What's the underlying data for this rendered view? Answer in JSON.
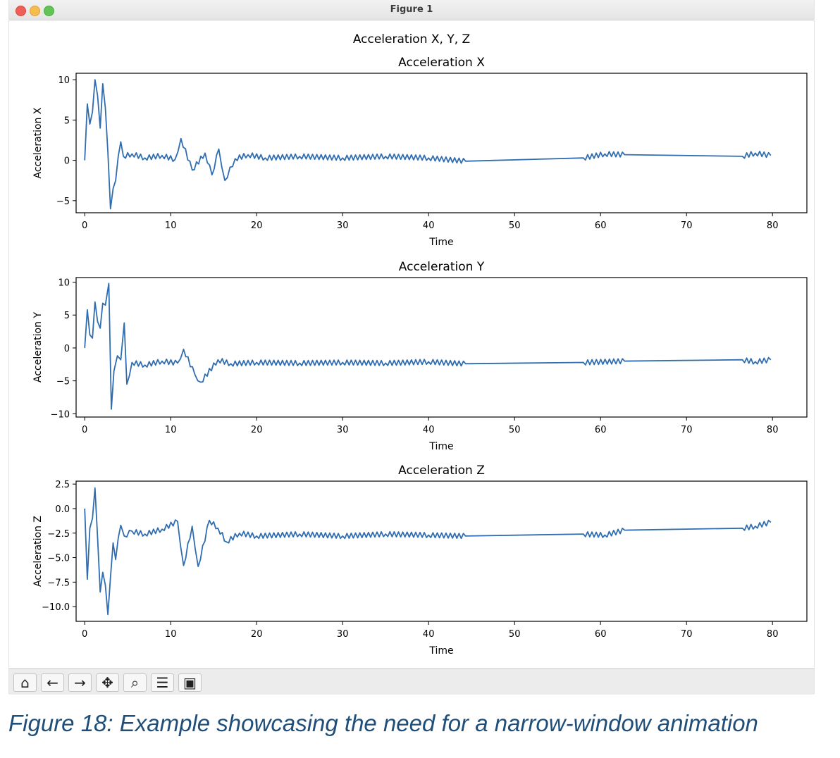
{
  "window": {
    "title": "Figure 1"
  },
  "figure": {
    "suptitle": "Acceleration X, Y, Z",
    "xlabel": "Time",
    "x_ticks": [
      0,
      10,
      20,
      30,
      40,
      50,
      60,
      70,
      80
    ],
    "line_color": "#2f6db0"
  },
  "chart_data": [
    {
      "type": "line",
      "title": "Acceleration X",
      "xlabel": "Time",
      "ylabel": "Acceleration X",
      "xlim": [
        -1,
        84
      ],
      "ylim": [
        -6.5,
        10.8
      ],
      "y_ticks": [
        10,
        5,
        0,
        -5
      ],
      "y_tick_labels": [
        "10",
        "5",
        "0",
        "−5"
      ],
      "series": [
        {
          "x": [
            0,
            0.3,
            0.6,
            0.9,
            1.2,
            1.5,
            1.8,
            2.1,
            2.4,
            2.7,
            3.0,
            3.3,
            3.6,
            3.9,
            4.2,
            4.5,
            5.5,
            7,
            9,
            10.5,
            11.2,
            12.5,
            14,
            14.8,
            15.6,
            16.3,
            17.5,
            19,
            21,
            25,
            30,
            35,
            40,
            44.3,
            58,
            60.5,
            62.8,
            76.5,
            78,
            79.8
          ],
          "y": [
            0,
            7.0,
            4.5,
            6.0,
            10.0,
            8.0,
            4.0,
            9.5,
            6.5,
            1.0,
            -6.0,
            -3.5,
            -2.5,
            0.5,
            2.3,
            0.5,
            0.8,
            0.3,
            0.6,
            0.1,
            2.7,
            -1.2,
            0.9,
            -1.8,
            1.4,
            -2.5,
            0.2,
            0.7,
            0.3,
            0.5,
            0.3,
            0.5,
            0.3,
            -0.1,
            0.3,
            0.8,
            0.7,
            0.5,
            0.9,
            0.6
          ]
        }
      ]
    },
    {
      "type": "line",
      "title": "Acceleration Y",
      "xlabel": "Time",
      "ylabel": "Acceleration Y",
      "xlim": [
        -1,
        84
      ],
      "ylim": [
        -10.5,
        10.7
      ],
      "y_ticks": [
        10,
        5,
        0,
        -5,
        -10
      ],
      "y_tick_labels": [
        "10",
        "5",
        "0",
        "−5",
        "−10"
      ],
      "series": [
        {
          "x": [
            0,
            0.3,
            0.6,
            0.9,
            1.2,
            1.5,
            1.8,
            2.1,
            2.4,
            2.8,
            3.1,
            3.4,
            3.8,
            4.2,
            4.6,
            4.9,
            5.5,
            7,
            9,
            10.8,
            11.5,
            12.8,
            13.5,
            15.5,
            17,
            20,
            25,
            30,
            35,
            40,
            44.3,
            58,
            62.8,
            76.5,
            78,
            79.8
          ],
          "y": [
            0,
            5.8,
            2.0,
            1.5,
            7.0,
            4.0,
            3.0,
            6.8,
            6.5,
            9.8,
            -9.3,
            -3.5,
            -1.2,
            -1.8,
            3.8,
            -5.5,
            -2.2,
            -2.6,
            -2.0,
            -2.3,
            -0.2,
            -4.0,
            -5.2,
            -1.8,
            -2.4,
            -2.2,
            -2.3,
            -2.2,
            -2.3,
            -2.1,
            -2.4,
            -2.2,
            -2.0,
            -1.8,
            -2.1,
            -1.8
          ]
        }
      ]
    },
    {
      "type": "line",
      "title": "Acceleration Z",
      "xlabel": "Time",
      "ylabel": "Acceleration Z",
      "xlim": [
        -1,
        84
      ],
      "ylim": [
        -11.5,
        2.8
      ],
      "y_ticks": [
        2.5,
        0.0,
        -2.5,
        -5.0,
        -7.5,
        -10.0
      ],
      "y_tick_labels": [
        "2.5",
        "0.0",
        "−2.5",
        "−5.0",
        "−7.5",
        "−10.0"
      ],
      "series": [
        {
          "x": [
            0,
            0.3,
            0.6,
            0.9,
            1.2,
            1.5,
            1.8,
            2.1,
            2.4,
            2.7,
            3.0,
            3.3,
            3.6,
            3.9,
            4.2,
            4.6,
            5.5,
            7,
            9,
            10.8,
            11.5,
            12.5,
            13.2,
            14.5,
            15.5,
            16.5,
            18,
            20,
            25,
            30,
            35,
            40,
            44.3,
            58,
            60.5,
            62.8,
            76.5,
            78,
            79.8
          ],
          "y": [
            0,
            -7.2,
            -2.0,
            -1.0,
            2.1,
            -3.0,
            -8.5,
            -6.5,
            -7.8,
            -10.8,
            -7.0,
            -3.5,
            -5.2,
            -3.0,
            -1.7,
            -2.8,
            -2.3,
            -2.6,
            -2.1,
            -1.3,
            -5.8,
            -1.8,
            -5.9,
            -1.2,
            -2.0,
            -3.4,
            -2.5,
            -2.8,
            -2.6,
            -2.8,
            -2.6,
            -2.7,
            -2.8,
            -2.6,
            -2.7,
            -2.2,
            -2.0,
            -1.8,
            -1.4
          ]
        }
      ]
    }
  ],
  "toolbar": [
    {
      "name": "home-icon",
      "glyph": "⌂"
    },
    {
      "name": "back-arrow-icon",
      "glyph": "←"
    },
    {
      "name": "forward-arrow-icon",
      "glyph": "→"
    },
    {
      "name": "pan-move-icon",
      "glyph": "✥"
    },
    {
      "name": "zoom-magnifier-icon",
      "glyph": "⌕"
    },
    {
      "name": "configure-subplots-icon",
      "glyph": "☰"
    },
    {
      "name": "save-floppy-icon",
      "glyph": "▣"
    }
  ],
  "caption": "Figure 18: Example showcasing the need for a narrow-window animation"
}
